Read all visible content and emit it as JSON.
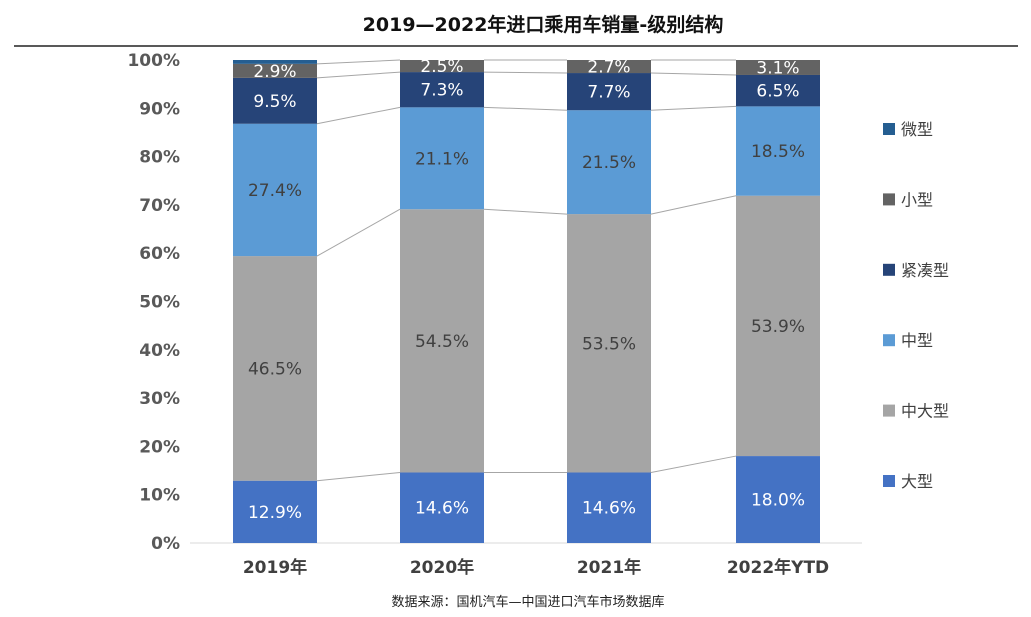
{
  "chart_data": {
    "type": "bar",
    "stacked": true,
    "title": "2019—2022年进口乘用车销量-级别结构",
    "source": "数据来源：国机汽车—中国进口汽车市场数据库",
    "categories": [
      "2019年",
      "2020年",
      "2021年",
      "2022年YTD"
    ],
    "ylim": [
      0,
      100
    ],
    "yticks": [
      "0%",
      "10%",
      "20%",
      "30%",
      "40%",
      "50%",
      "60%",
      "70%",
      "80%",
      "90%",
      "100%"
    ],
    "legend_position": "right",
    "legend_order": [
      "微型",
      "小型",
      "紧凑型",
      "中型",
      "中大型",
      "大型"
    ],
    "series": [
      {
        "name": "大型",
        "color": "#4472C4",
        "label_color": "#ffffff",
        "values": [
          12.9,
          14.6,
          14.6,
          18.0
        ],
        "labels": [
          "12.9%",
          "14.6%",
          "14.6%",
          "18.0%"
        ]
      },
      {
        "name": "中大型",
        "color": "#A5A5A5",
        "label_color": "#404040",
        "values": [
          46.5,
          54.5,
          53.5,
          53.9
        ],
        "labels": [
          "46.5%",
          "54.5%",
          "53.5%",
          "53.9%"
        ]
      },
      {
        "name": "中型",
        "color": "#5B9BD5",
        "label_color": "#404040",
        "values": [
          27.4,
          21.1,
          21.5,
          18.5
        ],
        "labels": [
          "27.4%",
          "21.1%",
          "21.5%",
          "18.5%"
        ]
      },
      {
        "name": "紧凑型",
        "color": "#264478",
        "label_color": "#ffffff",
        "values": [
          9.5,
          7.3,
          7.7,
          6.5
        ],
        "labels": [
          "9.5%",
          "7.3%",
          "7.7%",
          "6.5%"
        ]
      },
      {
        "name": "小型",
        "color": "#636363",
        "label_color": "#ffffff",
        "values": [
          2.9,
          2.5,
          2.7,
          3.1
        ],
        "labels": [
          "2.9%",
          "2.5%",
          "2.7%",
          "3.1%"
        ]
      },
      {
        "name": "微型",
        "color": "#255E91",
        "label_color": "#ffffff",
        "values": [
          0.8,
          0.0,
          0.0,
          0.0
        ],
        "labels": [
          "",
          "",
          "",
          ""
        ]
      }
    ]
  }
}
